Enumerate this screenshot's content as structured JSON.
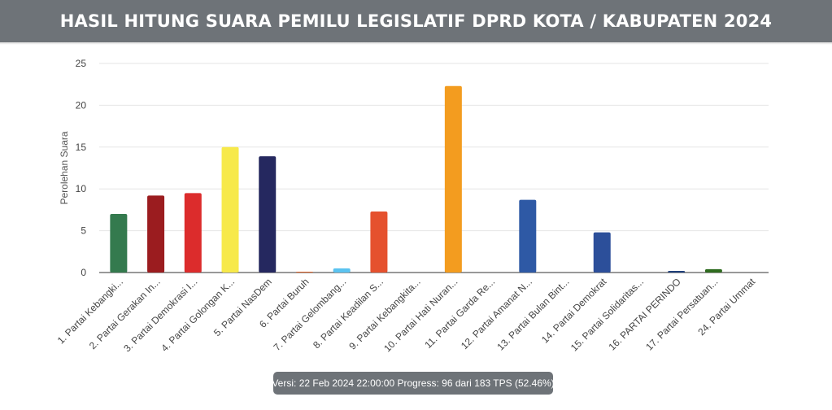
{
  "header": {
    "title": "HASIL HITUNG SUARA PEMILU LEGISLATIF DPRD KOTA / KABUPATEN 2024"
  },
  "status": {
    "text": "Versi: 22 Feb 2024 22:00:00 Progress: 96 dari 183 TPS (52.46%)"
  },
  "chart_data": {
    "type": "bar",
    "title": "",
    "xlabel": "",
    "ylabel": "Perolehan Suara",
    "ylim": [
      0,
      25
    ],
    "yticks": [
      0,
      5,
      10,
      15,
      20,
      25
    ],
    "grid": true,
    "categories": [
      "1. Partai Kebangki...",
      "2. Partai Gerakan In...",
      "3. Partai Demokrasi I...",
      "4. Partai Golongan K...",
      "5. Partai NasDem",
      "6. Partai Buruh",
      "7. Partai Gelombang...",
      "8. Partai Keadilan S...",
      "9. Partai Kebangkita...",
      "10. Partai Hati Nuran...",
      "11. Partai Garda Re...",
      "12. Partai Amanat N...",
      "13. Partai Bulan Bint...",
      "14. Partai Demokrat",
      "15. Partai Solidaritas...",
      "16. PARTAI PERINDO",
      "17. Partai Persatuan...",
      "24. Partai Ummat"
    ],
    "values": [
      7,
      9.2,
      9.5,
      15,
      13.9,
      0.1,
      0.5,
      7.3,
      0,
      22.3,
      0,
      8.7,
      0,
      4.8,
      0,
      0.2,
      0.4,
      0
    ],
    "colors": [
      "#347a4e",
      "#9b1c1f",
      "#dc2c2c",
      "#f7e94a",
      "#25285f",
      "#e0652c",
      "#5bc3f0",
      "#e5512e",
      "#2d7a3e",
      "#f39c1f",
      "#e4572e",
      "#2e59a5",
      "#2f8f4f",
      "#2c4f9a",
      "#e23d3d",
      "#1f3f7a",
      "#2e6b1f",
      "#27346b"
    ]
  }
}
